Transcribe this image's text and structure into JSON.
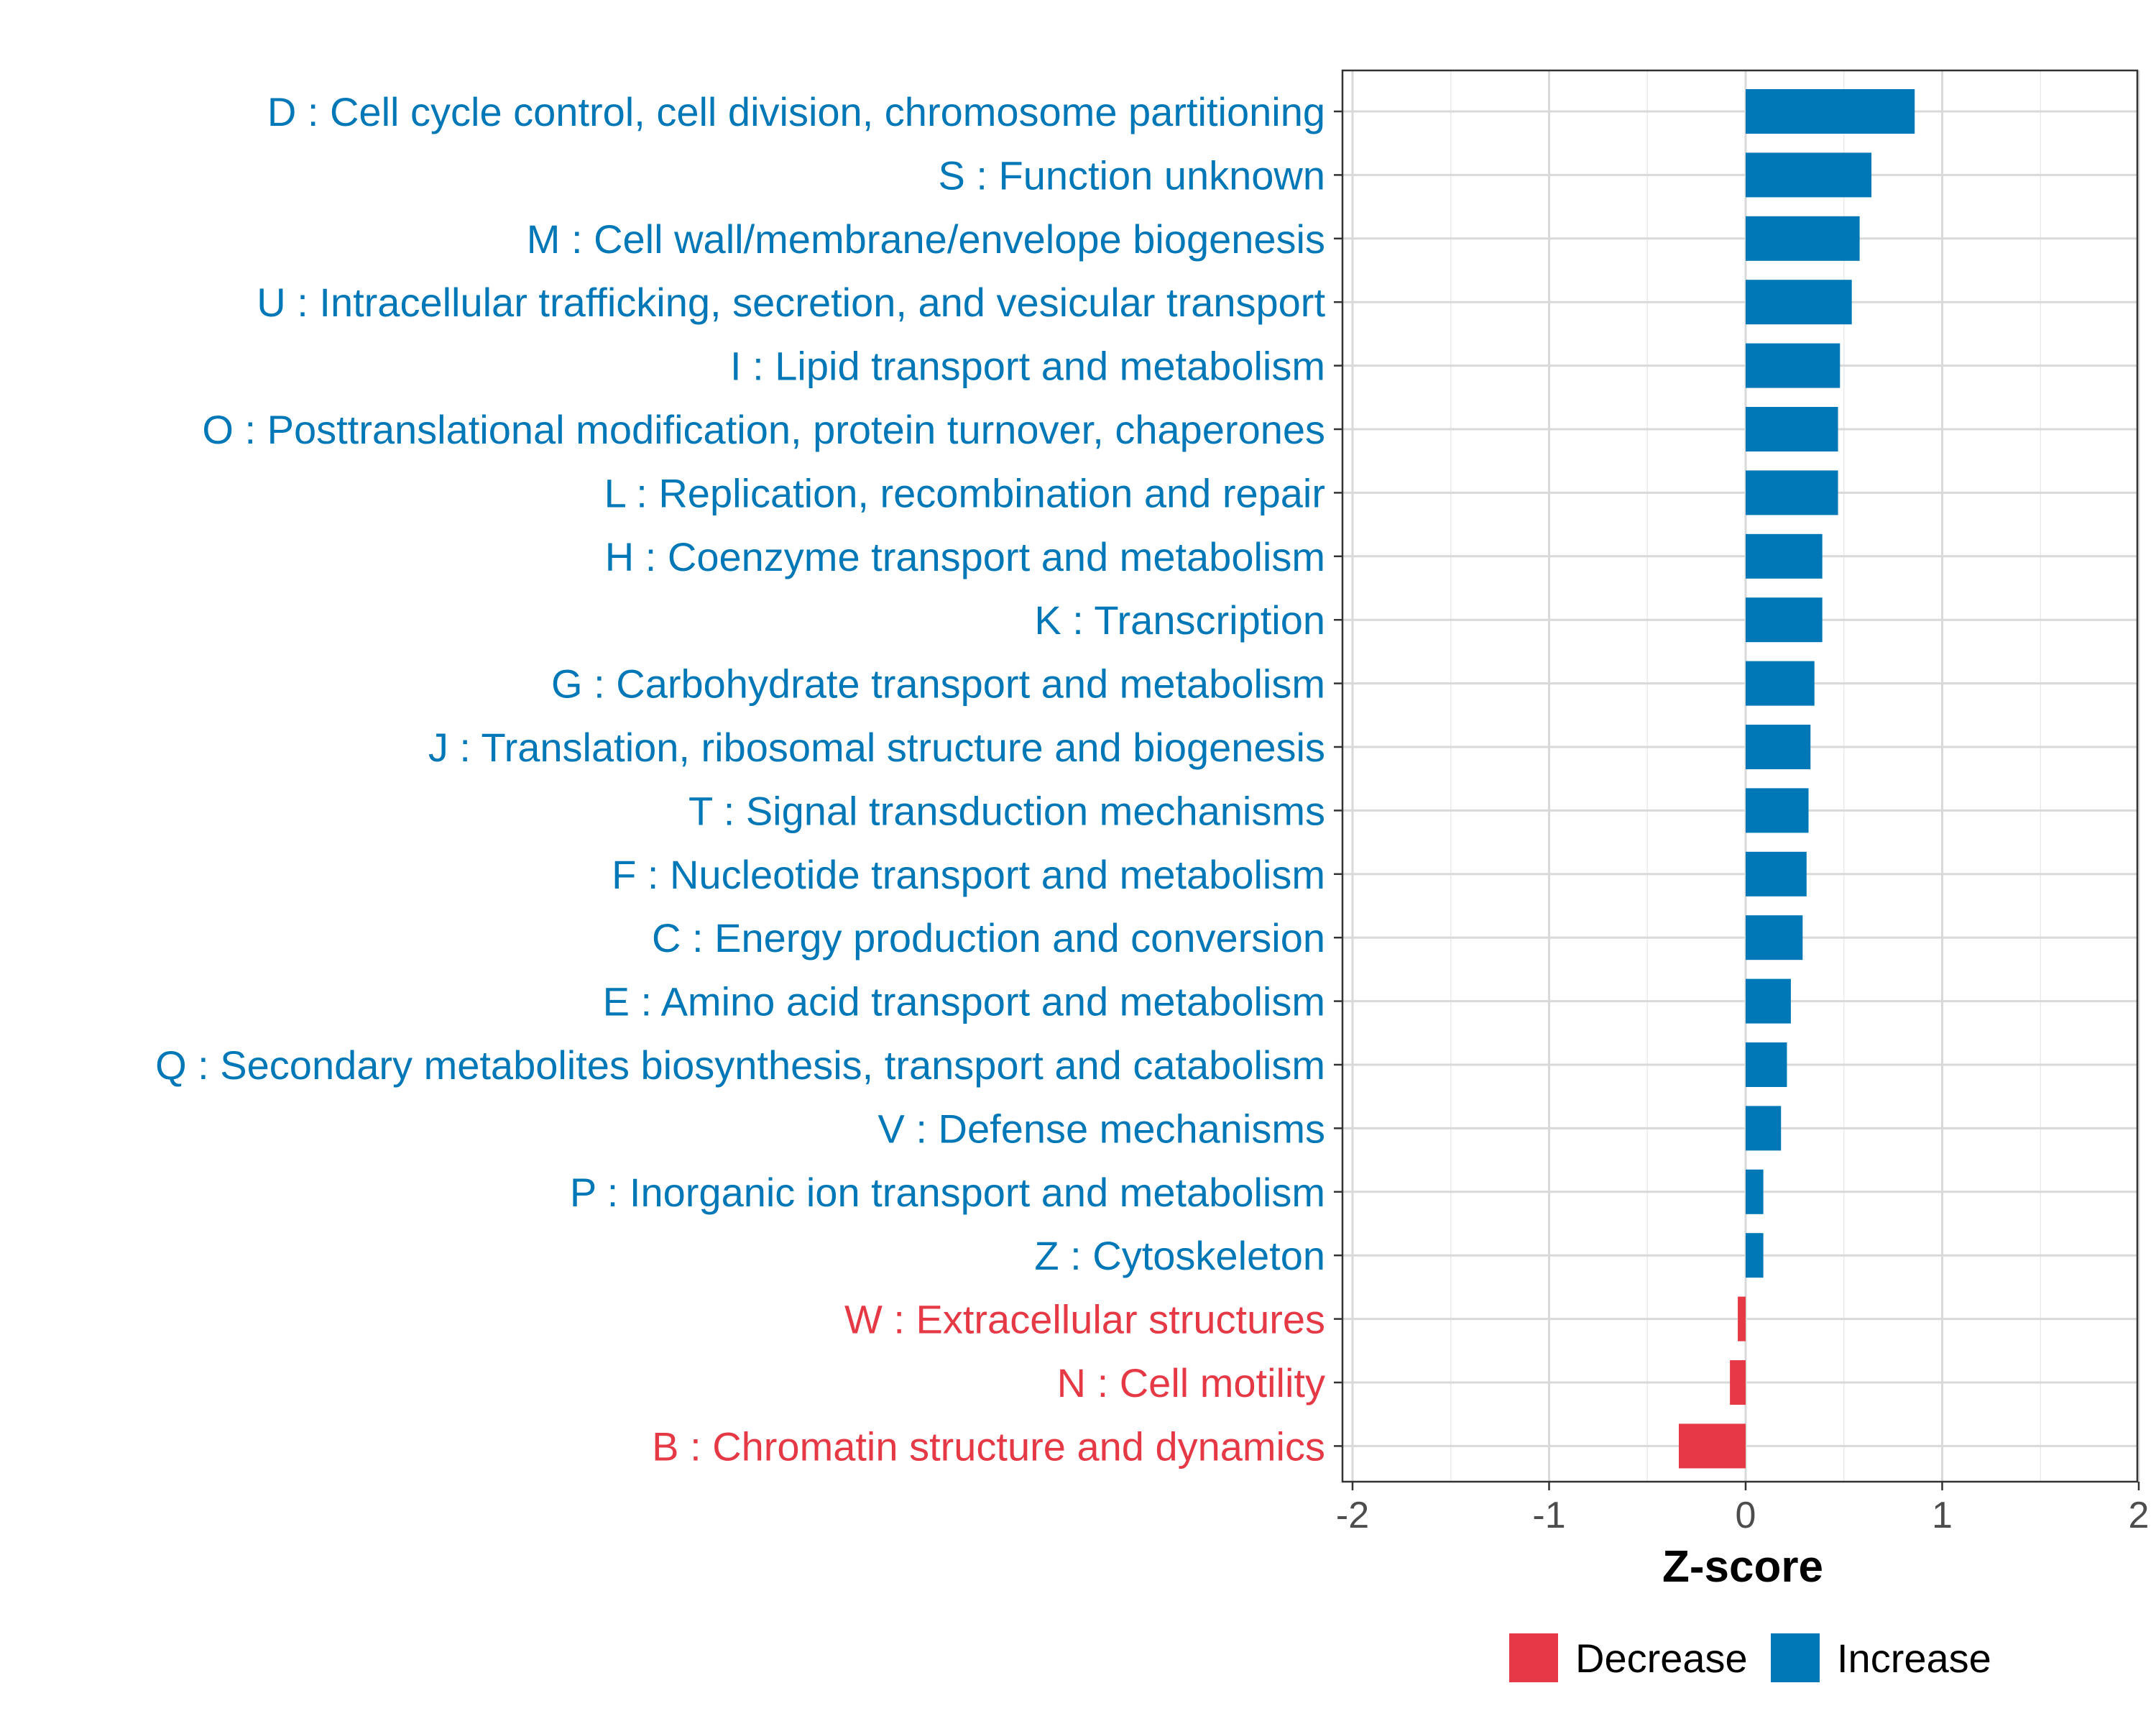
{
  "chart_data": {
    "type": "bar",
    "orientation": "horizontal",
    "title": "",
    "xlabel": "Z-score",
    "ylabel": "",
    "xlim": [
      -2,
      2
    ],
    "xticks": [
      -2,
      -1,
      0,
      1,
      2
    ],
    "grid": true,
    "legend_position": "bottom",
    "colors": {
      "Decrease": "#e63946",
      "Increase": "#0077b6"
    },
    "legend": [
      {
        "label": "Decrease",
        "color": "#e63946"
      },
      {
        "label": "Increase",
        "color": "#0077b6"
      }
    ],
    "categories": [
      "D : Cell cycle control, cell division, chromosome partitioning",
      "S : Function unknown",
      "M : Cell wall/membrane/envelope biogenesis",
      "U : Intracellular trafficking, secretion, and vesicular transport",
      "I : Lipid transport and metabolism",
      "O : Posttranslational modification, protein turnover, chaperones",
      "L : Replication, recombination and repair",
      "H : Coenzyme transport and metabolism",
      "K : Transcription",
      "G : Carbohydrate transport and metabolism",
      "J : Translation, ribosomal structure and biogenesis",
      "T : Signal transduction mechanisms",
      "F : Nucleotide transport and metabolism",
      "C : Energy production and conversion",
      "E : Amino acid transport and metabolism",
      "Q : Secondary metabolites biosynthesis, transport and catabolism",
      "V : Defense mechanisms",
      "P : Inorganic ion transport and metabolism",
      "Z : Cytoskeleton",
      "W : Extracellular structures",
      "N : Cell motility",
      "B : Chromatin structure and dynamics"
    ],
    "values": [
      0.86,
      0.64,
      0.58,
      0.54,
      0.48,
      0.47,
      0.47,
      0.39,
      0.39,
      0.35,
      0.33,
      0.32,
      0.31,
      0.29,
      0.23,
      0.21,
      0.18,
      0.09,
      0.09,
      -0.04,
      -0.08,
      -0.34
    ],
    "groups": [
      "Increase",
      "Increase",
      "Increase",
      "Increase",
      "Increase",
      "Increase",
      "Increase",
      "Increase",
      "Increase",
      "Increase",
      "Increase",
      "Increase",
      "Increase",
      "Increase",
      "Increase",
      "Increase",
      "Increase",
      "Increase",
      "Increase",
      "Decrease",
      "Decrease",
      "Decrease"
    ]
  }
}
